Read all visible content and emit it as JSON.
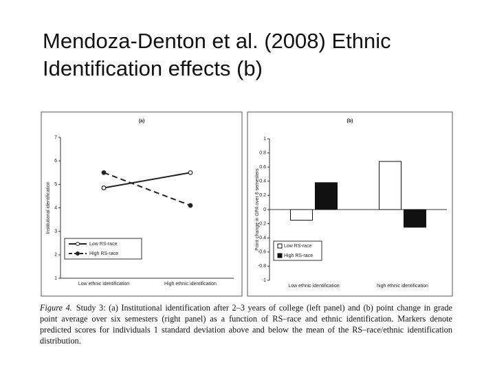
{
  "title": "Mendoza-Denton et al. (2008) Ethnic Identification effects (b)",
  "caption": {
    "label": "Figure 4.",
    "text": "Study 3: (a) Institutional identification after 2–3 years of college (left panel) and (b) point change in grade point average over six semesters (right panel) as a function of RS–race and ethnic identification. Markers denote predicted scores for individuals 1 standard deviation above and below the mean of the RS–race/ethnic identification distribution."
  },
  "chart_data": [
    {
      "type": "line",
      "title": "(a)",
      "y_label": "Institutional identification",
      "categories": [
        "Low ethnic identification",
        "High ethnic identification"
      ],
      "series": [
        {
          "name": "Low RS-race",
          "color": "#222222",
          "line_style": "solid",
          "marker": "open",
          "values": [
            4.85,
            5.5
          ]
        },
        {
          "name": "High RS-race",
          "color": "#222222",
          "line_style": "dashed",
          "marker": "filled",
          "values": [
            5.5,
            4.1
          ]
        }
      ],
      "ylim": [
        1,
        7
      ],
      "yticks": [
        1,
        2,
        3,
        4,
        5,
        6,
        7
      ],
      "legend": "lower left"
    },
    {
      "type": "bar",
      "title": "(b)",
      "y_label": "Point change in GPA over 6 semesters",
      "categories": [
        "Low ethnic identification",
        "high ethnic identification"
      ],
      "series": [
        {
          "name": "Low RS-race",
          "color": "#ffffff",
          "values": [
            -0.15,
            0.68
          ]
        },
        {
          "name": "High RS-race",
          "color": "#111111",
          "values": [
            0.38,
            -0.25
          ]
        }
      ],
      "ylim": [
        -1,
        1
      ],
      "yticks": [
        -1,
        -0.8,
        -0.6,
        -0.4,
        -0.2,
        0,
        0.2,
        0.4,
        0.6,
        0.8,
        1
      ],
      "legend": "lower left"
    }
  ]
}
